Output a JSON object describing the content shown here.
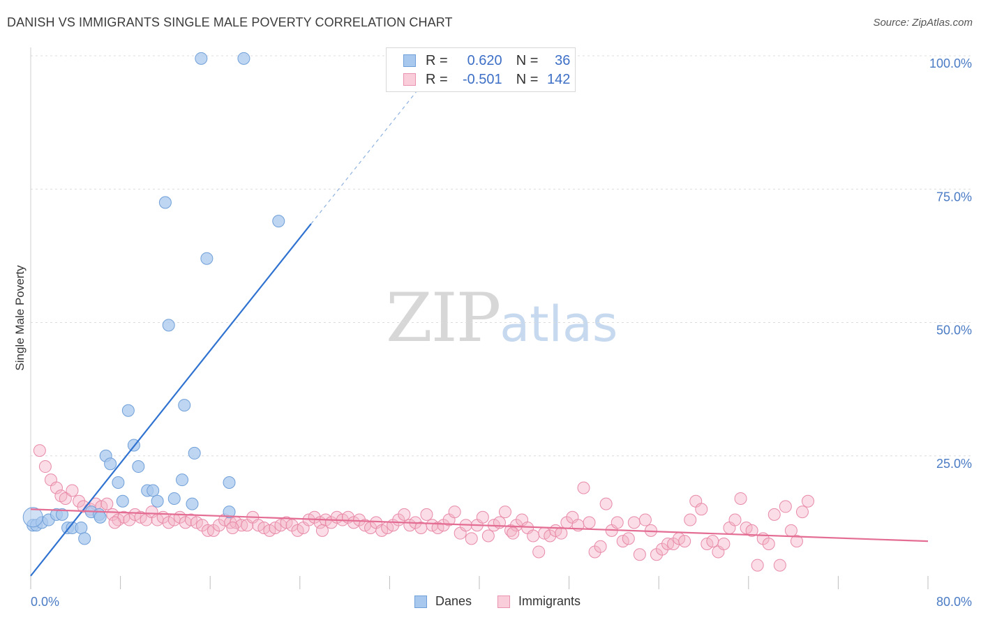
{
  "title": "DANISH VS IMMIGRANTS SINGLE MALE POVERTY CORRELATION CHART",
  "source": "Source: ZipAtlas.com",
  "watermark": {
    "zip": "ZIP",
    "atlas": "atlas"
  },
  "legend": {
    "danes": {
      "r_label": "R =",
      "r_value": "0.620",
      "n_label": "N =",
      "n_value": "36",
      "color": "#a9c8ee"
    },
    "immigrants": {
      "r_label": "R =",
      "r_value": "-0.501",
      "n_label": "N =",
      "n_value": "142",
      "color": "#f5b3c8"
    }
  },
  "bottom_legend": {
    "danes": "Danes",
    "immigrants": "Immigrants"
  },
  "chart_data": {
    "type": "scatter",
    "title": "DANISH VS IMMIGRANTS SINGLE MALE POVERTY CORRELATION CHART",
    "xlabel": "",
    "ylabel": "Single Male Poverty",
    "xlim": [
      0,
      80
    ],
    "ylim": [
      0,
      100
    ],
    "x_tick_labels": {
      "left": "0.0%",
      "right": "80.0%"
    },
    "y_ticks": [
      {
        "value": 100,
        "label": "100.0%"
      },
      {
        "value": 75,
        "label": "75.0%"
      },
      {
        "value": 50,
        "label": "50.0%"
      },
      {
        "value": 25,
        "label": "25.0%"
      }
    ],
    "series": [
      {
        "name": "Danes",
        "color": "#a9c8ee",
        "stroke": "#6f9fd8",
        "trend": {
          "x0": 0,
          "y0": 2.5,
          "x1": 25,
          "y1": 68.5,
          "dash_to_x": 34.5
        },
        "points": [
          [
            0.2,
            12.0
          ],
          [
            0.5,
            12.0
          ],
          [
            1.0,
            12.5
          ],
          [
            1.6,
            13.0
          ],
          [
            2.3,
            14.0
          ],
          [
            2.8,
            14.0
          ],
          [
            3.3,
            11.5
          ],
          [
            3.7,
            11.5
          ],
          [
            4.5,
            11.5
          ],
          [
            4.8,
            9.5
          ],
          [
            5.4,
            14.5
          ],
          [
            6.1,
            14.0
          ],
          [
            6.2,
            13.5
          ],
          [
            6.7,
            25.0
          ],
          [
            7.1,
            23.5
          ],
          [
            7.8,
            20.0
          ],
          [
            8.2,
            16.5
          ],
          [
            8.7,
            33.5
          ],
          [
            9.2,
            27.0
          ],
          [
            9.6,
            23.0
          ],
          [
            10.4,
            18.5
          ],
          [
            10.9,
            18.5
          ],
          [
            11.3,
            16.5
          ],
          [
            12.0,
            72.5
          ],
          [
            12.3,
            49.5
          ],
          [
            12.8,
            17.0
          ],
          [
            13.5,
            20.5
          ],
          [
            13.7,
            34.5
          ],
          [
            14.4,
            16.0
          ],
          [
            14.6,
            25.5
          ],
          [
            15.2,
            99.5
          ],
          [
            15.7,
            62.0
          ],
          [
            17.7,
            20.0
          ],
          [
            17.7,
            14.5
          ],
          [
            19.0,
            99.5
          ],
          [
            22.1,
            69.0
          ]
        ]
      },
      {
        "name": "Immigrants",
        "color": "#f5b3c8",
        "stroke": "#e88aa8",
        "trend": {
          "x0": 0,
          "y0": 15.0,
          "x1": 80,
          "y1": 9.0
        },
        "points": [
          [
            0.8,
            26.0
          ],
          [
            1.3,
            23.0
          ],
          [
            1.8,
            20.5
          ],
          [
            2.3,
            19.0
          ],
          [
            2.7,
            17.5
          ],
          [
            3.1,
            17.0
          ],
          [
            3.7,
            18.5
          ],
          [
            4.3,
            16.5
          ],
          [
            4.7,
            15.5
          ],
          [
            5.3,
            15.0
          ],
          [
            5.8,
            16.0
          ],
          [
            6.3,
            15.5
          ],
          [
            6.8,
            16.0
          ],
          [
            7.3,
            14.0
          ],
          [
            7.8,
            13.0
          ],
          [
            8.3,
            13.5
          ],
          [
            8.8,
            13.0
          ],
          [
            9.3,
            14.0
          ],
          [
            9.8,
            13.5
          ],
          [
            10.3,
            13.0
          ],
          [
            10.8,
            14.5
          ],
          [
            11.3,
            13.0
          ],
          [
            11.8,
            13.5
          ],
          [
            12.3,
            12.5
          ],
          [
            12.8,
            13.0
          ],
          [
            13.3,
            13.5
          ],
          [
            13.8,
            12.5
          ],
          [
            14.3,
            13.0
          ],
          [
            14.8,
            12.5
          ],
          [
            15.3,
            12.0
          ],
          [
            15.8,
            11.0
          ],
          [
            16.3,
            11.0
          ],
          [
            16.8,
            12.0
          ],
          [
            17.3,
            13.0
          ],
          [
            17.8,
            12.5
          ],
          [
            18.3,
            12.5
          ],
          [
            18.8,
            12.0
          ],
          [
            19.3,
            12.0
          ],
          [
            19.8,
            13.5
          ],
          [
            20.3,
            12.0
          ],
          [
            20.8,
            11.5
          ],
          [
            21.3,
            11.0
          ],
          [
            21.8,
            11.5
          ],
          [
            22.3,
            12.0
          ],
          [
            22.8,
            12.5
          ],
          [
            23.3,
            12.0
          ],
          [
            23.8,
            11.0
          ],
          [
            24.3,
            11.5
          ],
          [
            24.8,
            13.0
          ],
          [
            25.3,
            13.5
          ],
          [
            25.8,
            12.5
          ],
          [
            26.3,
            13.0
          ],
          [
            26.8,
            12.5
          ],
          [
            27.3,
            13.5
          ],
          [
            27.8,
            13.0
          ],
          [
            28.3,
            13.5
          ],
          [
            28.8,
            12.5
          ],
          [
            29.3,
            13.0
          ],
          [
            29.8,
            12.0
          ],
          [
            30.3,
            11.5
          ],
          [
            30.8,
            12.5
          ],
          [
            31.3,
            11.0
          ],
          [
            31.8,
            11.5
          ],
          [
            32.3,
            12.0
          ],
          [
            32.8,
            13.0
          ],
          [
            33.3,
            14.0
          ],
          [
            33.8,
            12.0
          ],
          [
            34.3,
            12.5
          ],
          [
            34.8,
            11.5
          ],
          [
            35.3,
            14.0
          ],
          [
            35.8,
            12.0
          ],
          [
            36.3,
            11.5
          ],
          [
            36.8,
            12.0
          ],
          [
            37.3,
            13.0
          ],
          [
            37.8,
            14.5
          ],
          [
            38.3,
            10.5
          ],
          [
            38.8,
            12.0
          ],
          [
            39.3,
            9.5
          ],
          [
            39.8,
            12.0
          ],
          [
            40.3,
            13.5
          ],
          [
            40.8,
            10.0
          ],
          [
            41.3,
            12.0
          ],
          [
            41.8,
            12.5
          ],
          [
            42.3,
            14.5
          ],
          [
            42.8,
            11.0
          ],
          [
            43.3,
            12.0
          ],
          [
            43.8,
            13.0
          ],
          [
            44.3,
            11.5
          ],
          [
            44.8,
            10.0
          ],
          [
            45.3,
            7.0
          ],
          [
            45.8,
            10.5
          ],
          [
            46.3,
            10.0
          ],
          [
            46.8,
            11.0
          ],
          [
            47.3,
            10.5
          ],
          [
            47.8,
            12.5
          ],
          [
            48.3,
            13.5
          ],
          [
            48.8,
            12.0
          ],
          [
            49.3,
            19.0
          ],
          [
            49.8,
            12.5
          ],
          [
            50.3,
            7.0
          ],
          [
            50.8,
            8.0
          ],
          [
            51.3,
            16.0
          ],
          [
            51.8,
            11.0
          ],
          [
            52.3,
            12.5
          ],
          [
            52.8,
            9.0
          ],
          [
            53.3,
            9.5
          ],
          [
            53.8,
            12.5
          ],
          [
            54.3,
            6.5
          ],
          [
            54.8,
            13.0
          ],
          [
            55.3,
            11.0
          ],
          [
            55.8,
            6.5
          ],
          [
            56.3,
            7.5
          ],
          [
            56.8,
            8.5
          ],
          [
            57.3,
            8.5
          ],
          [
            57.8,
            9.5
          ],
          [
            58.3,
            9.0
          ],
          [
            58.8,
            13.0
          ],
          [
            59.3,
            16.5
          ],
          [
            59.8,
            15.0
          ],
          [
            60.3,
            8.5
          ],
          [
            60.8,
            9.0
          ],
          [
            61.3,
            7.0
          ],
          [
            61.8,
            8.5
          ],
          [
            62.3,
            11.5
          ],
          [
            62.8,
            13.0
          ],
          [
            63.3,
            17.0
          ],
          [
            63.8,
            11.5
          ],
          [
            64.3,
            11.0
          ],
          [
            64.8,
            4.5
          ],
          [
            65.3,
            9.5
          ],
          [
            65.8,
            8.5
          ],
          [
            66.3,
            14.0
          ],
          [
            66.8,
            4.5
          ],
          [
            67.3,
            15.5
          ],
          [
            67.8,
            11.0
          ],
          [
            68.3,
            9.0
          ],
          [
            68.8,
            14.5
          ],
          [
            69.3,
            16.5
          ],
          [
            43.0,
            10.5
          ],
          [
            26.0,
            11.0
          ],
          [
            18.0,
            11.5
          ],
          [
            7.5,
            12.5
          ]
        ]
      }
    ]
  }
}
